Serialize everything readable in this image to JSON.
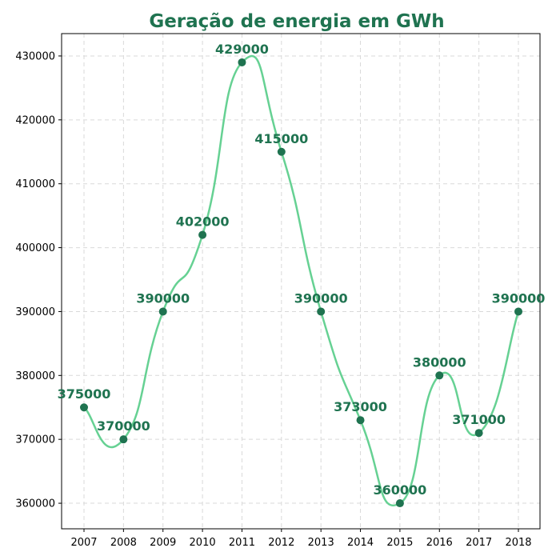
{
  "colors": {
    "title": "#1f7350",
    "line": "#66d193",
    "marker": "#1f7350",
    "label": "#1f7350"
  },
  "chart_data": {
    "type": "line",
    "title": "Geração de energia em GWh",
    "xlabel": "",
    "ylabel": "",
    "x": [
      "2007",
      "2008",
      "2009",
      "2010",
      "2011",
      "2012",
      "2013",
      "2014",
      "2015",
      "2016",
      "2017",
      "2018"
    ],
    "series": [
      {
        "values": [
          375000,
          370000,
          390000,
          402000,
          429000,
          415000,
          390000,
          373000,
          360000,
          380000,
          371000,
          390000
        ],
        "data_labels": [
          "375000",
          "370000",
          "390000",
          "402000",
          "429000",
          "415000",
          "390000",
          "373000",
          "360000",
          "380000",
          "371000",
          "390000"
        ]
      }
    ],
    "ylim": [
      356000,
      433500
    ],
    "yticks": [
      360000,
      370000,
      380000,
      390000,
      400000,
      410000,
      420000,
      430000
    ],
    "ytick_labels": [
      "360000",
      "370000",
      "380000",
      "390000",
      "400000",
      "410000",
      "420000",
      "430000"
    ],
    "grid": true,
    "smooth": true,
    "markers": true,
    "legend": "none"
  }
}
